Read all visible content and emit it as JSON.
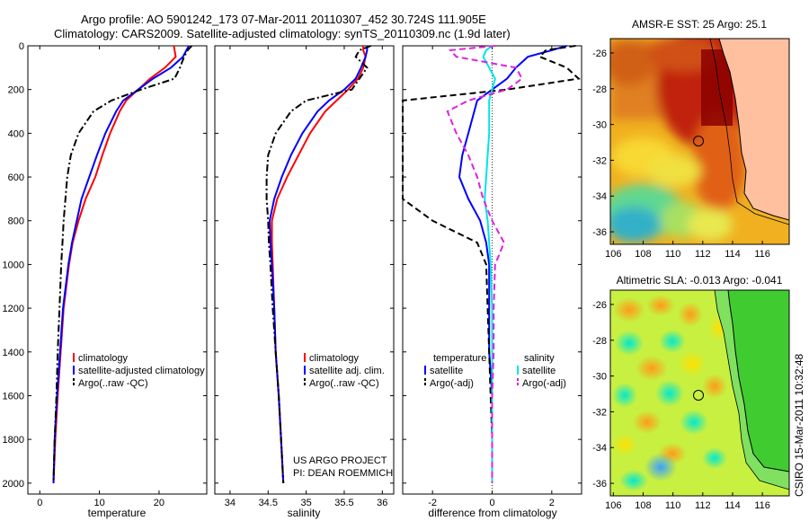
{
  "title": {
    "line1": "Argo profile: AO 5901242_173 07-Mar-2011 20110307_452 30.724S 111.905E",
    "line2": "Climatology: CARS2009. Satellite-adjusted climatology: synTS_20110309.nc (1.9d later)"
  },
  "colors": {
    "climatology": "#ff0000",
    "satellite": "#0000ff",
    "argo": "#000000",
    "sat_sal": "#00e5e5",
    "argo_sal": "#e020e0"
  },
  "chart_data": [
    {
      "type": "line",
      "id": "temperature",
      "xlabel": "temperature",
      "xlim": [
        -2,
        28
      ],
      "ylim": [
        2050,
        0
      ],
      "xticks": [
        0,
        10,
        20
      ],
      "yticks": [
        0,
        200,
        400,
        600,
        800,
        1000,
        1200,
        1400,
        1600,
        1800,
        2000
      ],
      "y": [
        0,
        20,
        50,
        100,
        150,
        200,
        250,
        300,
        400,
        500,
        600,
        700,
        800,
        900,
        1000,
        1200,
        1400,
        1600,
        1800,
        2000
      ],
      "series": [
        {
          "name": "climatology",
          "color": "#ff0000",
          "dash": "solid",
          "x": [
            22.5,
            22.6,
            22.8,
            21.0,
            18.5,
            16.5,
            14.5,
            13.4,
            11.8,
            10.5,
            9.3,
            7.7,
            6.5,
            5.5,
            4.9,
            4.0,
            3.5,
            3.0,
            2.6,
            2.3
          ]
        },
        {
          "name": "satellite-adjusted climatology",
          "color": "#0000ff",
          "dash": "solid",
          "x": [
            25.0,
            24.6,
            24.0,
            22.0,
            19.0,
            16.5,
            14.0,
            12.8,
            11.0,
            9.6,
            8.3,
            7.0,
            6.2,
            5.4,
            4.8,
            3.9,
            3.4,
            2.9,
            2.5,
            2.3
          ]
        },
        {
          "name": "Argo(..raw -QC)",
          "color": "#000000",
          "dash": "dashdot",
          "x": [
            25.5,
            24.8,
            24.2,
            23.5,
            22.6,
            17.0,
            12.0,
            9.0,
            6.5,
            5.2,
            4.6,
            4.3,
            4.0,
            3.8,
            3.6,
            3.3,
            3.0,
            2.8,
            2.5,
            2.3
          ]
        }
      ],
      "legend": [
        "climatology",
        "satellite-adjusted climatology",
        "Argo(..raw -QC)"
      ]
    },
    {
      "type": "line",
      "id": "salinity",
      "xlabel": "salinity",
      "xlim": [
        33.8,
        36.15
      ],
      "ylim": [
        2050,
        0
      ],
      "xticks": [
        34,
        34.5,
        35,
        35.5,
        36
      ],
      "xticklabels": [
        "34",
        "34.5",
        "35",
        "35.5",
        "36"
      ],
      "y": [
        0,
        20,
        50,
        100,
        150,
        200,
        250,
        300,
        400,
        500,
        600,
        700,
        800,
        900,
        1000,
        1200,
        1400,
        1600,
        1800,
        2000
      ],
      "series": [
        {
          "name": "climatology",
          "color": "#ff0000",
          "dash": "solid",
          "x": [
            35.75,
            35.75,
            35.78,
            35.75,
            35.68,
            35.55,
            35.4,
            35.25,
            35.05,
            34.9,
            34.75,
            34.62,
            34.55,
            34.55,
            34.56,
            34.58,
            34.6,
            34.64,
            34.67,
            34.7
          ]
        },
        {
          "name": "satellite adj. clim.",
          "color": "#0000ff",
          "dash": "solid",
          "x": [
            35.8,
            35.8,
            35.78,
            35.72,
            35.65,
            35.5,
            35.3,
            35.15,
            34.95,
            34.8,
            34.68,
            34.58,
            34.52,
            34.53,
            34.55,
            34.58,
            34.6,
            34.64,
            34.67,
            34.7
          ]
        },
        {
          "name": "Argo(..raw -QC)",
          "color": "#000000",
          "dash": "dashdot",
          "x": [
            35.85,
            35.7,
            35.65,
            35.8,
            35.7,
            35.6,
            35.0,
            34.8,
            34.6,
            34.5,
            34.48,
            34.48,
            34.5,
            34.51,
            34.53,
            34.56,
            34.6,
            34.64,
            34.67,
            34.7
          ]
        }
      ],
      "legend": [
        "climatology",
        "satellite adj. clim.",
        "Argo(..raw -QC)"
      ],
      "annotation": [
        "US ARGO PROJECT",
        "PI: DEAN ROEMMICH"
      ]
    },
    {
      "type": "line",
      "id": "difference",
      "xlabel": "difference from climatology",
      "xlim": [
        -3,
        3
      ],
      "ylim": [
        2050,
        0
      ],
      "xticks": [
        -2,
        0,
        2
      ],
      "y": [
        0,
        20,
        50,
        100,
        150,
        200,
        250,
        300,
        400,
        500,
        600,
        700,
        800,
        900,
        1000,
        1200,
        1400,
        1600,
        1800,
        2000
      ],
      "series": [
        {
          "name": "temperature satellite",
          "color": "#0000ff",
          "dash": "solid",
          "x": [
            2.5,
            2.0,
            1.2,
            0.8,
            0.5,
            0.0,
            -0.5,
            -0.6,
            -0.8,
            -1.0,
            -1.1,
            -0.8,
            -0.4,
            -0.2,
            -0.1,
            -0.1,
            -0.1,
            0.0,
            0.0,
            0.0
          ]
        },
        {
          "name": "temperature Argo(-adj)",
          "color": "#000000",
          "dash": "dashed",
          "x": [
            2.8,
            1.8,
            1.6,
            2.5,
            2.9,
            0.5,
            -3.0,
            -3.0,
            -3.0,
            -3.0,
            -3.0,
            -3.0,
            -2.0,
            -0.5,
            -0.2,
            -0.15,
            -0.1,
            -0.05,
            0.0,
            0.0
          ]
        },
        {
          "name": "salinity satellite",
          "color": "#00e5e5",
          "dash": "solid",
          "x": [
            0.0,
            -0.2,
            -0.3,
            -0.1,
            0.1,
            0.0,
            -0.1,
            -0.1,
            -0.1,
            -0.15,
            -0.2,
            -0.25,
            -0.15,
            -0.1,
            -0.05,
            0.0,
            0.0,
            0.0,
            0.0,
            0.0
          ]
        },
        {
          "name": "salinity Argo(-adj)",
          "color": "#e020e0",
          "dash": "dashed",
          "x": [
            0.1,
            -1.4,
            -1.2,
            0.8,
            1.0,
            0.5,
            -0.8,
            -1.5,
            -1.2,
            -0.8,
            -0.5,
            -0.3,
            0.0,
            0.4,
            0.1,
            0.05,
            0.05,
            0.0,
            0.0,
            0.0
          ]
        }
      ],
      "legend": {
        "temperature": [
          "satellite",
          "Argo(-adj)"
        ],
        "salinity": [
          "satellite",
          "Argo(-adj)"
        ]
      },
      "legend_headers": [
        "temperature",
        "salinity"
      ]
    }
  ],
  "maps": [
    {
      "id": "sst",
      "title": "AMSR-E SST: 25 Argo: 25.1",
      "xticks": [
        106,
        108,
        110,
        112,
        114,
        116
      ],
      "yticks": [
        -26,
        -28,
        -30,
        -32,
        -34,
        -36
      ]
    },
    {
      "id": "sla",
      "title": "Altimetric SLA: -0.013 Argo: -0.041",
      "xticks": [
        106,
        108,
        110,
        112,
        114,
        116
      ],
      "yticks": [
        -26,
        -28,
        -30,
        -32,
        -34,
        -36
      ]
    }
  ],
  "side_label": "CSIRO 15-Mar-2011 10:32:48"
}
